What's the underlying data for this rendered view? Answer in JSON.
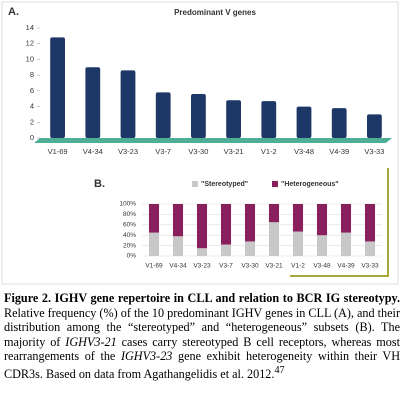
{
  "chart_data": [
    {
      "type": "bar",
      "panel": "A.",
      "title": "Predominant V genes",
      "categories": [
        "V1-69",
        "V4-34",
        "V3-23",
        "V3-7",
        "V3-30",
        "V3-21",
        "V1-2",
        "V3-48",
        "V4-39",
        "V3-33"
      ],
      "values": [
        12.8,
        9,
        8.6,
        5.8,
        5.6,
        4.8,
        4.7,
        4.0,
        3.8,
        3.0
      ],
      "color": "#1d3766",
      "ylim": [
        0,
        14
      ],
      "yticks": [
        0,
        2,
        4,
        6,
        8,
        10,
        12,
        14
      ],
      "grid": false
    },
    {
      "type": "stacked_bar",
      "panel": "B.",
      "categories": [
        "V1-69",
        "V4-34",
        "V3-23",
        "V3-7",
        "V3-30",
        "V3-21",
        "V1-2",
        "V3-48",
        "V4-39",
        "V3-33"
      ],
      "series": [
        {
          "name": "\"Stereotyped\"",
          "color": "#c8c8c8",
          "values": [
            45,
            38,
            15,
            22,
            28,
            65,
            47,
            40,
            45,
            28
          ]
        },
        {
          "name": "\"Heterogeneous\"",
          "color": "#8a1f5e",
          "values": [
            55,
            62,
            85,
            78,
            72,
            35,
            53,
            60,
            55,
            72
          ]
        }
      ],
      "ylim": [
        0,
        100
      ],
      "yticks": [
        {
          "value": 0,
          "label": "0%"
        },
        {
          "value": 20,
          "label": "20%"
        },
        {
          "value": 40,
          "label": "40%"
        },
        {
          "value": 60,
          "label": "60%"
        },
        {
          "value": 80,
          "label": "80%"
        },
        {
          "value": 100,
          "label": "100%"
        }
      ],
      "grid": true,
      "legend": "top"
    }
  ],
  "caption": {
    "title": "Figure 2. IGHV gene repertoire in CLL and relation to BCR IG stereotypy.",
    "parts": [
      " Relative frequency (%) of the 10 predominant IGHV genes in CLL (A), and their distribution among the “stereotyped” and “heterogeneous” subsets (B). The majority of ",
      "IGHV3-21",
      " cases carry stereotyped B cell receptors, whereas most rearrangements of the ",
      "IGHV3-23",
      " gene exhibit heterogeneity within their VH CDR3s. Based on data from Agathangelidis et al. 2012.",
      "47"
    ]
  }
}
